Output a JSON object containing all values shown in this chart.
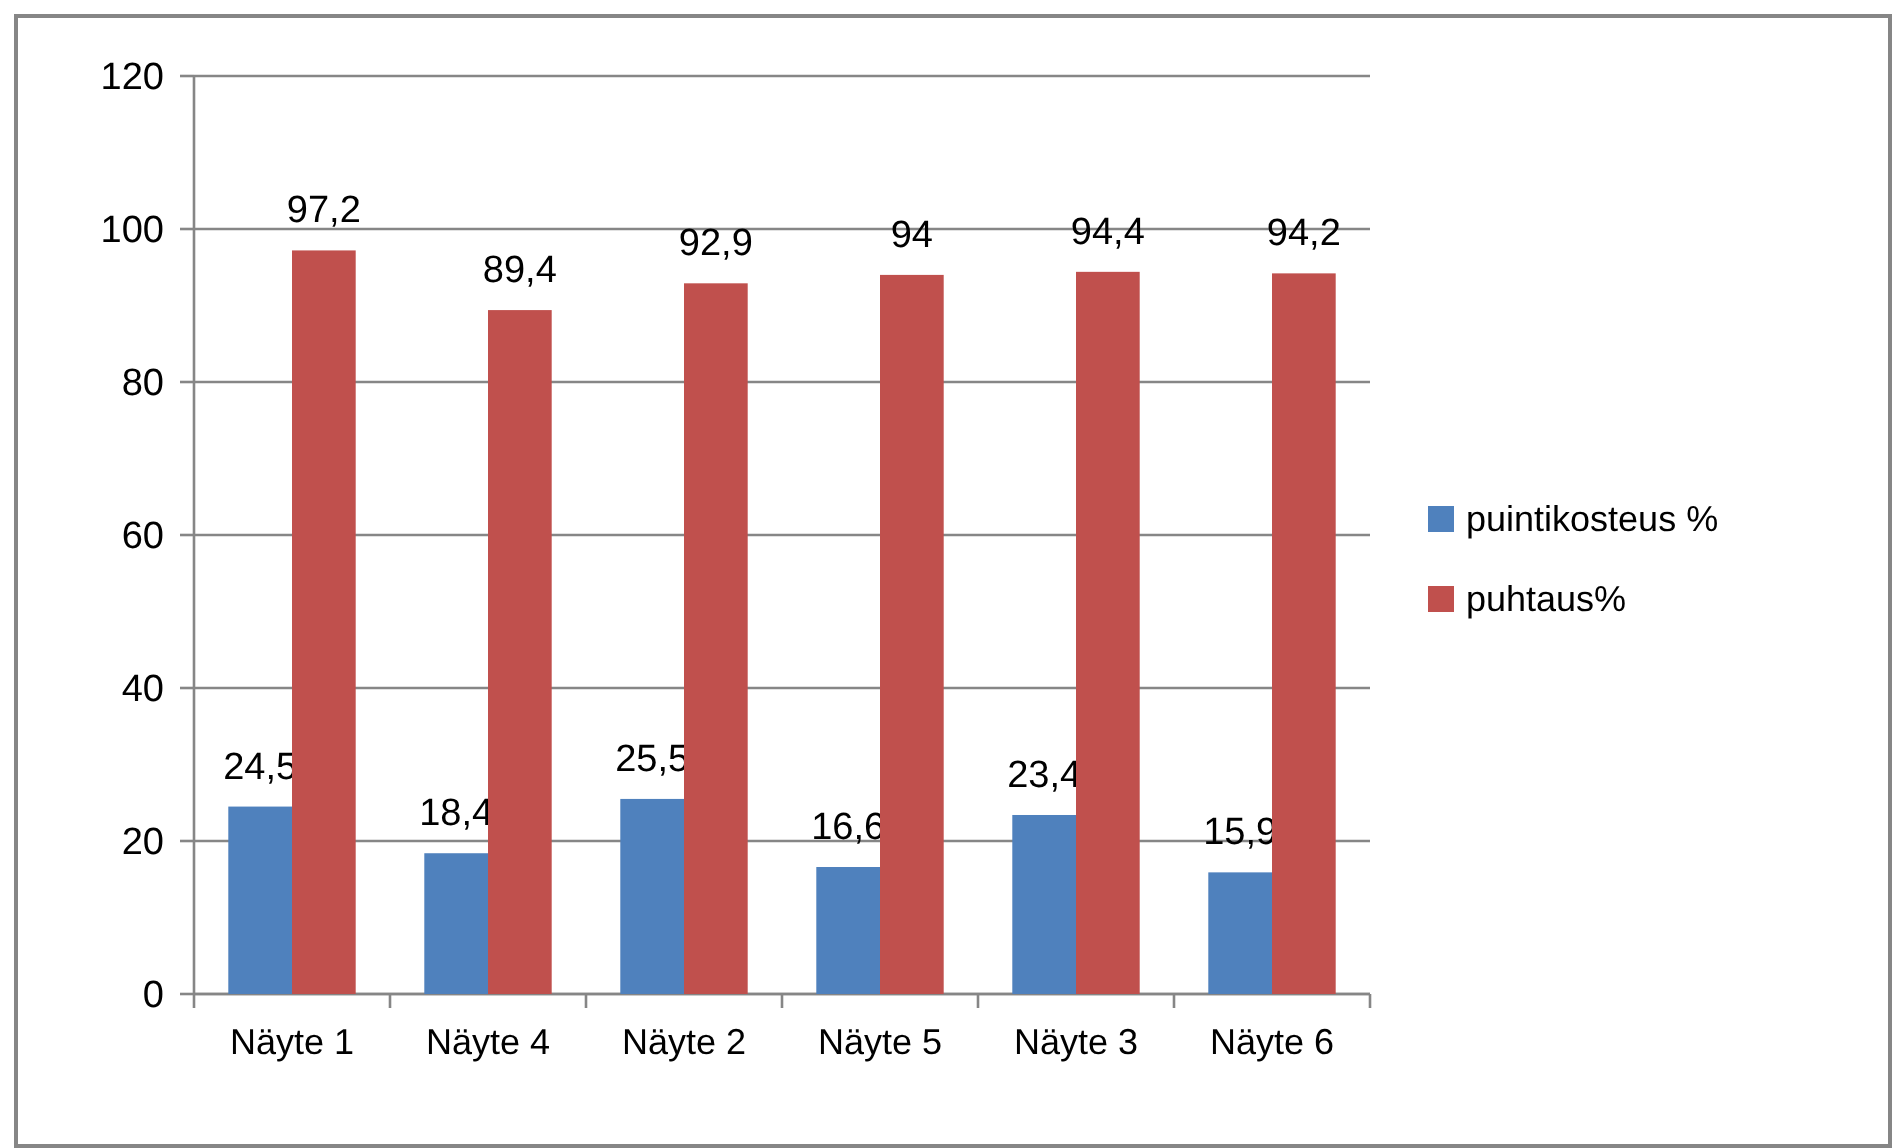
{
  "chart_data": {
    "type": "bar",
    "categories": [
      "Näyte 1",
      "Näyte 4",
      "Näyte 2",
      "Näyte 5",
      "Näyte 3",
      "Näyte 6"
    ],
    "series": [
      {
        "name": "puintikosteus %",
        "color": "#4f81bd",
        "values": [
          24.5,
          18.4,
          25.5,
          16.6,
          23.4,
          15.9
        ],
        "value_labels": [
          "24,5",
          "18,4",
          "25,5",
          "16,6",
          "23,4",
          "15,9"
        ]
      },
      {
        "name": "puhtaus%",
        "color": "#c0504d",
        "values": [
          97.2,
          89.4,
          92.9,
          94,
          94.4,
          94.2
        ],
        "value_labels": [
          "97,2",
          "89,4",
          "92,9",
          "94",
          "94,4",
          "94,2"
        ]
      }
    ],
    "ylim": [
      0,
      120
    ],
    "yticks": [
      0,
      20,
      40,
      60,
      80,
      100,
      120
    ],
    "grid": "y",
    "legend": "right"
  }
}
